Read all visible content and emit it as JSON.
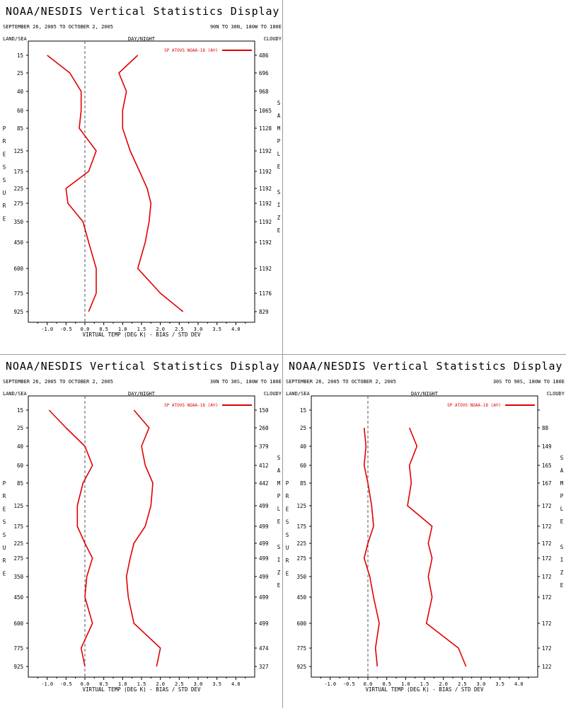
{
  "panels": [
    {
      "title": "NOAA/NESDIS Vertical Statistics Display",
      "date_range": "SEPTEMBER 26, 2005 TO OCTOBER 2, 2005",
      "region": "90N TO 30N, 180W TO 180E",
      "land_sea": "LAND/SEA",
      "day_night": "DAY/NIGHT",
      "cloudy": "CLOUDY",
      "pressure_label": "PRESSURE",
      "sample_size_label": "SAMPLE SIZE",
      "legend": "SP ATOVS NOAA-18 (A®)"
    },
    {
      "title": "NOAA/NESDIS Vertical Statistics Display",
      "date_range": "SEPTEMBER 26, 2005 TO OCTOBER 2, 2005",
      "region": "30N TO 30S, 180W TO 180E",
      "land_sea": "LAND/SEA",
      "day_night": "DAY/NIGHT",
      "cloudy": "CLOUDY",
      "pressure_label": "PRESSURE",
      "sample_size_label": "SAMPLE SIZE",
      "legend": "SP ATOVS NOAA-18 (A®)"
    },
    {
      "title": "NOAA/NESDIS Vertical Statistics Display",
      "date_range": "SEPTEMBER 26, 2005 TO OCTOBER 2, 2005",
      "region": "30S TO 90S, 180W TO 180E",
      "land_sea": "LAND/SEA",
      "day_night": "DAY/NIGHT",
      "cloudy": "CLOUDY",
      "pressure_label": "PRESSURE",
      "sample_size_label": "SAMPLE SIZE",
      "legend": "SP ATOVS NOAA-18 (A®)"
    }
  ],
  "colors": {
    "series": "#e00000",
    "zero_line": "#555555",
    "border": "#9a9a9a"
  },
  "chart_data": [
    {
      "type": "line",
      "xlabel": "VIRTUAL TEMP (DEG K) - BIAS / STD DEV",
      "xlim": [
        -1.5,
        4.5
      ],
      "xticks": [
        -1.0,
        -0.5,
        0.0,
        0.5,
        1.0,
        1.5,
        2.0,
        2.5,
        3.0,
        3.5,
        4.0
      ],
      "xtick_labels": [
        "-1.0",
        "-0.5",
        "0.0",
        "0.5",
        "1.0",
        "1.5",
        "2.0",
        "2.5",
        "3.0",
        "3.5",
        "4.0"
      ],
      "pressure_levels": [
        15,
        25,
        40,
        60,
        85,
        125,
        175,
        225,
        275,
        350,
        450,
        600,
        775,
        925
      ],
      "sample_size": [
        486,
        696,
        968,
        1065,
        1128,
        1192,
        1192,
        1192,
        1192,
        1192,
        1192,
        1192,
        1176,
        829
      ],
      "series": [
        {
          "values": [
            -1.0,
            -0.4,
            -0.1,
            -0.1,
            -0.15,
            0.3,
            0.1,
            -0.5,
            -0.45,
            -0.05,
            0.1,
            0.3,
            0.3,
            0.1
          ]
        },
        {
          "values": [
            1.4,
            0.9,
            1.1,
            1.0,
            1.0,
            1.2,
            1.45,
            1.65,
            1.75,
            1.7,
            1.6,
            1.4,
            2.0,
            2.6
          ]
        }
      ]
    },
    {
      "type": "line",
      "xlabel": "VIRTUAL TEMP (DEG K) - BIAS / STD DEV",
      "xlim": [
        -1.5,
        4.5
      ],
      "xticks": [
        -1.0,
        -0.5,
        0.0,
        0.5,
        1.0,
        1.5,
        2.0,
        2.5,
        3.0,
        3.5,
        4.0
      ],
      "xtick_labels": [
        "-1.0",
        "-0.5",
        "0.0",
        "0.5",
        "1.0",
        "1.5",
        "2.0",
        "2.5",
        "3.0",
        "3.5",
        "4.0"
      ],
      "pressure_levels": [
        15,
        25,
        40,
        60,
        85,
        125,
        175,
        225,
        275,
        350,
        450,
        600,
        775,
        925
      ],
      "sample_size": [
        150,
        260,
        379,
        412,
        442,
        499,
        499,
        499,
        499,
        499,
        499,
        499,
        474,
        327
      ],
      "series": [
        {
          "values": [
            -0.95,
            -0.5,
            0.0,
            0.2,
            -0.05,
            -0.2,
            -0.2,
            0.0,
            0.2,
            0.05,
            0.0,
            0.2,
            -0.1,
            0.0
          ]
        },
        {
          "values": [
            1.3,
            1.7,
            1.5,
            1.6,
            1.8,
            1.75,
            1.6,
            1.3,
            1.2,
            1.1,
            1.15,
            1.3,
            2.0,
            1.9
          ]
        }
      ]
    },
    {
      "type": "line",
      "xlabel": "VIRTUAL TEMP (DEG K) - BIAS / STD DEV",
      "xlim": [
        -1.5,
        4.5
      ],
      "xticks": [
        -1.0,
        -0.5,
        0.0,
        0.5,
        1.0,
        1.5,
        2.0,
        2.5,
        3.0,
        3.5,
        4.0
      ],
      "xtick_labels": [
        "-1.0",
        "-0.5",
        "0.0",
        "0.5",
        "1.0",
        "1.5",
        "2.0",
        "2.5",
        "3.0",
        "3.5",
        "4.0"
      ],
      "pressure_levels": [
        15,
        25,
        40,
        60,
        85,
        125,
        175,
        225,
        275,
        350,
        450,
        600,
        775,
        925
      ],
      "sample_size": [
        null,
        88,
        149,
        165,
        167,
        172,
        172,
        172,
        172,
        172,
        172,
        172,
        172,
        122
      ],
      "series": [
        {
          "values": [
            null,
            -0.1,
            -0.05,
            -0.1,
            0.0,
            0.1,
            0.15,
            0.0,
            -0.1,
            0.05,
            0.15,
            0.3,
            0.2,
            0.25
          ]
        },
        {
          "values": [
            null,
            1.1,
            1.3,
            1.1,
            1.15,
            1.05,
            1.7,
            1.6,
            1.7,
            1.6,
            1.7,
            1.55,
            2.4,
            2.6
          ]
        }
      ]
    }
  ]
}
